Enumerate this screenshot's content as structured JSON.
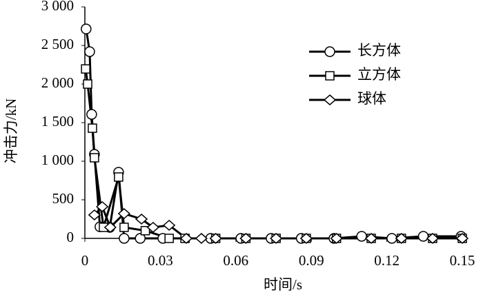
{
  "chart_data": {
    "type": "line",
    "xlabel": "时间/s",
    "ylabel": "冲击力/kN",
    "xlim": [
      0,
      0.15
    ],
    "xticks": [
      0,
      0.03,
      0.06,
      0.09,
      0.12,
      0.15
    ],
    "ylim": [
      0,
      3000
    ],
    "yticks": [
      0,
      500,
      {
        "value": 1000,
        "label": "1 000"
      },
      {
        "value": 1500,
        "label": "1 500"
      },
      {
        "value": 2000,
        "label": "2 000"
      },
      {
        "value": 2500,
        "label": "2 500"
      },
      {
        "value": 3000,
        "label": "3 000"
      }
    ],
    "grid": false,
    "legend": "upper right",
    "series": [
      {
        "name": "长方体",
        "color": "#000000",
        "marker": "circle",
        "x": [
          0.0005,
          0.0019,
          0.0027,
          0.0038,
          0.006,
          0.0099,
          0.0134,
          0.0156,
          0.022,
          0.031,
          0.05,
          0.062,
          0.074,
          0.086,
          0.099,
          0.11,
          0.122,
          0.1345,
          0.1495
        ],
        "values": [
          2714,
          2420,
          1607,
          1089,
          150,
          143,
          857,
          0,
          0,
          0,
          0,
          0,
          0,
          0,
          0,
          27,
          0,
          27,
          27
        ]
      },
      {
        "name": "立方体",
        "color": "#000000",
        "marker": "square",
        "x": [
          0.0003,
          0.0011,
          0.003,
          0.0038,
          0.0074,
          0.0134,
          0.0156,
          0.024,
          0.0335,
          0.0398,
          0.052,
          0.064,
          0.076,
          0.088,
          0.1,
          0.1138,
          0.1258,
          0.1382,
          0.15
        ],
        "values": [
          2196,
          2000,
          1428,
          1045,
          143,
          795,
          143,
          100,
          0,
          0,
          0,
          0,
          0,
          0,
          0,
          0,
          0,
          0,
          0
        ]
      },
      {
        "name": "球体",
        "color": "#000000",
        "marker": "diamond",
        "x": [
          0.0038,
          0.0069,
          0.0101,
          0.0156,
          0.0225,
          0.0271,
          0.0335,
          0.0403,
          0.0463,
          0.052,
          0.064,
          0.076,
          0.088,
          0.1,
          0.1138,
          0.1258,
          0.1382,
          0.15
        ],
        "values": [
          304,
          411,
          143,
          321,
          250,
          143,
          170,
          0,
          0,
          0,
          0,
          0,
          0,
          0,
          0,
          0,
          0,
          0
        ]
      }
    ]
  }
}
